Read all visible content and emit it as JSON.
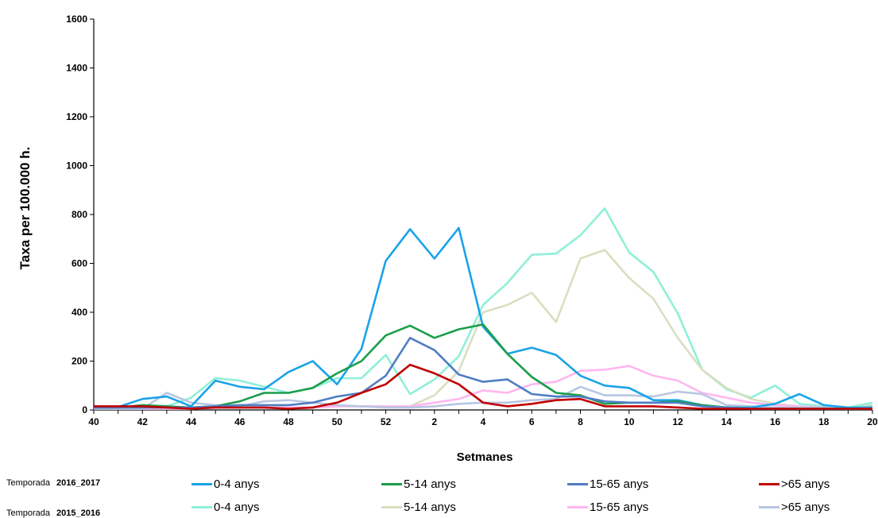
{
  "chart_data": {
    "type": "line",
    "title": "",
    "xlabel": "Setmanes",
    "ylabel": "Taxa per 100.000 h.",
    "ylim": [
      0,
      1600
    ],
    "yticks": [
      "0",
      "200",
      "400",
      "600",
      "800",
      "1000",
      "1200",
      "1400",
      "1600"
    ],
    "x": [
      "40",
      "41",
      "42",
      "43",
      "44",
      "45",
      "46",
      "47",
      "48",
      "49",
      "50",
      "51",
      "52",
      "1",
      "2",
      "3",
      "4",
      "5",
      "6",
      "7",
      "8",
      "9",
      "10",
      "11",
      "12",
      "13",
      "14",
      "15",
      "16",
      "17",
      "18",
      "19",
      "20"
    ],
    "xtick_labels": [
      "40",
      "42",
      "44",
      "46",
      "48",
      "50",
      "52",
      "2",
      "4",
      "6",
      "8",
      "10",
      "12",
      "14",
      "16",
      "18",
      "20"
    ],
    "grid": false,
    "legend_placement": "bottom",
    "seasons": [
      {
        "label": "Temporada",
        "name": "2016_2017",
        "series": [
          {
            "name": "0-4 anys",
            "color": "#1aa3e8",
            "values": [
              15,
              12,
              45,
              55,
              15,
              120,
              95,
              85,
              155,
              200,
              105,
              250,
              610,
              740,
              620,
              745,
              340,
              230,
              255,
              225,
              140,
              100,
              90,
              40,
              40,
              20,
              10,
              10,
              25,
              65,
              20,
              10,
              10
            ]
          },
          {
            "name": "5-14 anys",
            "color": "#1a9e4a",
            "values": [
              10,
              10,
              20,
              15,
              10,
              15,
              35,
              70,
              70,
              90,
              150,
              200,
              305,
              345,
              295,
              330,
              350,
              230,
              135,
              70,
              60,
              25,
              30,
              30,
              35,
              20,
              10,
              5,
              5,
              5,
              5,
              5,
              5
            ]
          },
          {
            "name": "15-65 anys",
            "color": "#4f7dc3",
            "values": [
              10,
              10,
              10,
              10,
              10,
              15,
              20,
              20,
              20,
              30,
              55,
              70,
              140,
              295,
              245,
              145,
              115,
              125,
              65,
              55,
              55,
              35,
              30,
              30,
              30,
              15,
              10,
              5,
              5,
              5,
              5,
              5,
              5
            ]
          },
          {
            "name": ">65 anys",
            "color": "#c00000",
            "values": [
              15,
              15,
              15,
              10,
              5,
              10,
              10,
              10,
              5,
              10,
              30,
              70,
              105,
              185,
              150,
              105,
              30,
              15,
              25,
              40,
              45,
              15,
              15,
              15,
              10,
              5,
              5,
              5,
              5,
              5,
              5,
              5,
              5
            ]
          }
        ]
      },
      {
        "label": "Temporada",
        "name": "2015_2016",
        "series": [
          {
            "name": "0-4 anys",
            "color": "#8ff0d8",
            "values": [
              10,
              10,
              15,
              15,
              50,
              130,
              120,
              95,
              70,
              90,
              130,
              130,
              225,
              65,
              125,
              220,
              430,
              520,
              635,
              640,
              715,
              825,
              645,
              565,
              395,
              165,
              85,
              50,
              100,
              25,
              15,
              10,
              30
            ]
          },
          {
            "name": "5-14 anys",
            "color": "#d9dfc0",
            "values": [
              5,
              5,
              5,
              5,
              5,
              10,
              10,
              10,
              10,
              10,
              15,
              15,
              15,
              15,
              60,
              160,
              400,
              430,
              480,
              360,
              620,
              655,
              540,
              455,
              295,
              165,
              90,
              45,
              25,
              15,
              10,
              5,
              20
            ]
          },
          {
            "name": "15-65 anys",
            "color": "#ffb6f0",
            "values": [
              5,
              5,
              5,
              5,
              5,
              10,
              10,
              10,
              10,
              10,
              15,
              15,
              15,
              15,
              30,
              45,
              80,
              70,
              105,
              115,
              160,
              165,
              180,
              140,
              120,
              70,
              50,
              30,
              20,
              15,
              10,
              5,
              10
            ]
          },
          {
            "name": ">65 anys",
            "color": "#b8c6e2",
            "values": [
              5,
              5,
              5,
              70,
              30,
              20,
              15,
              35,
              40,
              30,
              20,
              15,
              10,
              10,
              15,
              25,
              30,
              30,
              40,
              45,
              95,
              60,
              60,
              55,
              75,
              65,
              20,
              15,
              10,
              10,
              10,
              5,
              15
            ]
          }
        ]
      }
    ]
  }
}
